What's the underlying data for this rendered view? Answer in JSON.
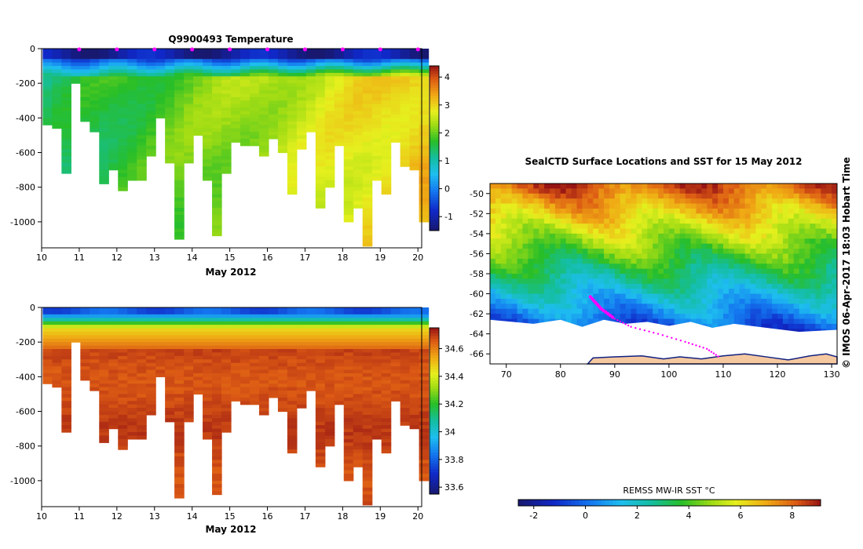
{
  "chart_data": [
    {
      "type": "heatmap",
      "title": "Q9900493  Temperature",
      "xlabel": "May 2012",
      "ylabel": "",
      "xlim": [
        10,
        20.1
      ],
      "ylim": [
        -1150,
        0
      ],
      "x_ticks": [
        "10",
        "11",
        "12",
        "13",
        "14",
        "15",
        "16",
        "17",
        "18",
        "19",
        "20"
      ],
      "y_ticks": [
        "0",
        "-200",
        "-400",
        "-600",
        "-800",
        "-1000"
      ],
      "colorbar_ticks": [
        "4",
        "3",
        "2",
        "1",
        "0",
        "-1"
      ],
      "colorbar_range": [
        -1.5,
        4.4
      ],
      "profile_markers": [
        11,
        12,
        13,
        14,
        15,
        16,
        17,
        18,
        19,
        20
      ],
      "profiles": [
        {
          "x": 10.05,
          "max_depth": 440
        },
        {
          "x": 10.3,
          "max_depth": 450
        },
        {
          "x": 10.55,
          "max_depth": 720
        },
        {
          "x": 10.8,
          "max_depth": 200
        },
        {
          "x": 11.05,
          "max_depth": 420
        },
        {
          "x": 11.3,
          "max_depth": 480
        },
        {
          "x": 11.55,
          "max_depth": 775
        },
        {
          "x": 11.8,
          "max_depth": 700
        },
        {
          "x": 12.05,
          "max_depth": 820
        },
        {
          "x": 12.3,
          "max_depth": 760
        },
        {
          "x": 12.55,
          "max_depth": 760
        },
        {
          "x": 12.8,
          "max_depth": 620
        },
        {
          "x": 13.05,
          "max_depth": 400
        },
        {
          "x": 13.3,
          "max_depth": 650
        },
        {
          "x": 13.55,
          "max_depth": 1100
        },
        {
          "x": 13.8,
          "max_depth": 660
        },
        {
          "x": 14.05,
          "max_depth": 500
        },
        {
          "x": 14.3,
          "max_depth": 760
        },
        {
          "x": 14.55,
          "max_depth": 1080
        },
        {
          "x": 14.8,
          "max_depth": 720
        },
        {
          "x": 15.05,
          "max_depth": 530
        },
        {
          "x": 15.3,
          "max_depth": 550
        },
        {
          "x": 15.55,
          "max_depth": 560
        },
        {
          "x": 15.8,
          "max_depth": 610
        },
        {
          "x": 16.05,
          "max_depth": 520
        },
        {
          "x": 16.3,
          "max_depth": 600
        },
        {
          "x": 16.55,
          "max_depth": 825
        },
        {
          "x": 16.8,
          "max_depth": 580
        },
        {
          "x": 17.05,
          "max_depth": 480
        },
        {
          "x": 17.3,
          "max_depth": 905
        },
        {
          "x": 17.55,
          "max_depth": 800
        },
        {
          "x": 17.8,
          "max_depth": 560
        },
        {
          "x": 18.05,
          "max_depth": 990
        },
        {
          "x": 18.3,
          "max_depth": 920
        },
        {
          "x": 18.55,
          "max_depth": 1130
        },
        {
          "x": 18.8,
          "max_depth": 760
        },
        {
          "x": 19.05,
          "max_depth": 840
        },
        {
          "x": 19.3,
          "max_depth": 540
        },
        {
          "x": 19.55,
          "max_depth": 680
        },
        {
          "x": 19.8,
          "max_depth": 700
        },
        {
          "x": 20.05,
          "max_depth": 1000
        }
      ]
    },
    {
      "type": "heatmap",
      "title": "",
      "xlabel": "May 2012",
      "ylabel": "",
      "xlim": [
        10,
        20.1
      ],
      "ylim": [
        -1150,
        0
      ],
      "x_ticks": [
        "10",
        "11",
        "12",
        "13",
        "14",
        "15",
        "16",
        "17",
        "18",
        "19",
        "20"
      ],
      "y_ticks": [
        "0",
        "-200",
        "-400",
        "-600",
        "-800",
        "-1000"
      ],
      "colorbar_ticks": [
        "34.6",
        "34.4",
        "34.2",
        "34",
        "33.8",
        "33.6"
      ],
      "colorbar_range": [
        33.55,
        34.75
      ],
      "profiles": "same as temperature section"
    },
    {
      "type": "heatmap",
      "title": "SealCTD Surface Locations and SST for 15 May 2012",
      "xlabel": "",
      "ylabel": "",
      "xlim": [
        67,
        131
      ],
      "ylim": [
        -67,
        -49
      ],
      "x_ticks": [
        "70",
        "80",
        "90",
        "100",
        "110",
        "120",
        "130"
      ],
      "y_ticks": [
        "-50",
        "-52",
        "-54",
        "-56",
        "-58",
        "-60",
        "-62",
        "-64",
        "-66"
      ],
      "colorbar_label": "REMSS MW-IR SST °C",
      "colorbar_ticks": [
        "-2",
        "0",
        "2",
        "4",
        "6",
        "8"
      ],
      "colorbar_range": [
        -2.6,
        9.1
      ],
      "track": [
        {
          "lon": 85.5,
          "lat": -60.3
        },
        {
          "lon": 87.5,
          "lat": -61.5
        },
        {
          "lon": 90,
          "lat": -62.5
        },
        {
          "lon": 93,
          "lat": -63.3
        },
        {
          "lon": 98,
          "lat": -64.0
        },
        {
          "lon": 103,
          "lat": -64.8
        },
        {
          "lon": 107,
          "lat": -65.5
        },
        {
          "lon": 109.5,
          "lat": -66.4
        }
      ]
    }
  ],
  "side_label": "© IMOS 06-Apr-2017 18:03 Hobart Time",
  "colors": {
    "marker": "#ff00ff",
    "land": "#f5c8a0",
    "ice": "#ffffff"
  }
}
